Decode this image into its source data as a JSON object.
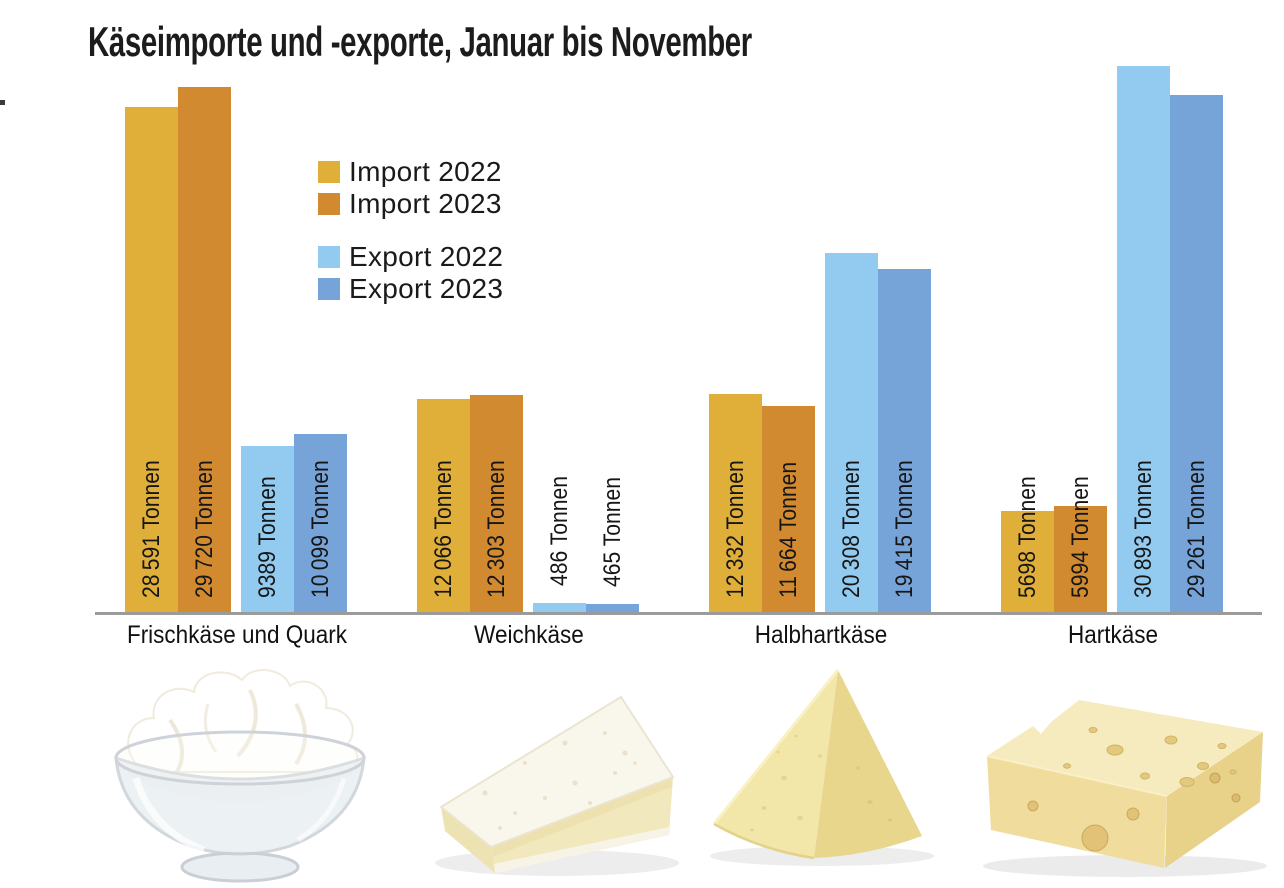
{
  "title": "Käseimporte und -exporte, Januar bis November",
  "chart_data": {
    "type": "bar",
    "title": "Käseimporte und -exporte, Januar bis November",
    "unit": "Tonnen",
    "categories": [
      "Frischkäse und Quark",
      "Weichkäse",
      "Halbhartkäse",
      "Hartkäse"
    ],
    "series": [
      {
        "name": "Import 2022",
        "color": "#E0AF3A",
        "values": [
          28591,
          12066,
          12332,
          5698
        ],
        "labels": [
          "28 591 Tonnen",
          "12 066 Tonnen",
          "12 332 Tonnen",
          "5698 Tonnen"
        ]
      },
      {
        "name": "Import 2023",
        "color": "#D18A30",
        "values": [
          29720,
          12303,
          11664,
          5994
        ],
        "labels": [
          "29 720 Tonnen",
          "12 303 Tonnen",
          "11 664 Tonnen",
          "5994 Tonnen"
        ]
      },
      {
        "name": "Export 2022",
        "color": "#92CBEF",
        "values": [
          9389,
          486,
          20308,
          30893
        ],
        "labels": [
          "9389 Tonnen",
          "486 Tonnen",
          "20 308 Tonnen",
          "30 893 Tonnen"
        ]
      },
      {
        "name": "Export 2023",
        "color": "#77A4D8",
        "values": [
          10099,
          465,
          19415,
          29261
        ],
        "labels": [
          "10 099 Tonnen",
          "465 Tonnen",
          "19 415 Tonnen",
          "29 261 Tonnen"
        ]
      }
    ],
    "ylim": [
      0,
      31000
    ],
    "grid": false,
    "axes": "baseline only, no tick labels",
    "axis_color": "#9B9B9B",
    "value_labels": "rotated 90° inside/above each bar",
    "legend_position": "inside upper-left"
  },
  "illustrations": [
    {
      "name": "fresh-cheese-bowl-image",
      "category": "Frischkäse und Quark"
    },
    {
      "name": "soft-cheese-wedge-image",
      "category": "Weichkäse"
    },
    {
      "name": "semi-hard-cheese-wedge-image",
      "category": "Halbhartkäse"
    },
    {
      "name": "hard-cheese-block-image",
      "category": "Hartkäse"
    }
  ]
}
